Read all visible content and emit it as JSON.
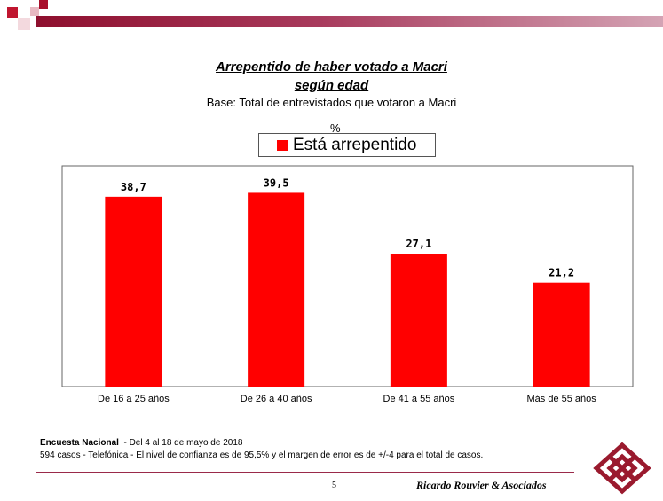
{
  "header": {
    "title_line1": "Arrepentido de haber votado a Macri",
    "title_line2": "según edad",
    "subtitle": "Base: Total de entrevistados que votaron a Macri",
    "unit": "%"
  },
  "colors": {
    "bar": "#ff0000",
    "accent": "#9a2a4a"
  },
  "chart_data": {
    "type": "bar",
    "categories": [
      "De 16 a 25 años",
      "De 26 a 40 años",
      "De 41 a 55 años",
      "Más de 55 años"
    ],
    "series": [
      {
        "name": "Está arrepentido",
        "values": [
          38.7,
          39.5,
          27.1,
          21.2
        ]
      }
    ],
    "value_labels": [
      "38,7",
      "39,5",
      "27,1",
      "21,2"
    ],
    "ylim": [
      0,
      45
    ],
    "grid": false,
    "legend_position": "top-center"
  },
  "footer": {
    "line1_bold": "Encuesta Nacional",
    "line1_rest": "  - Del 4 al 18 de mayo de 2018",
    "line2": "594 casos - Telefónica  - El nivel de confianza es de 95,5% y el margen de error es de +/-4 para el total de casos.",
    "page_number": "5",
    "brand": "Ricardo Rouvier & Asociados"
  }
}
